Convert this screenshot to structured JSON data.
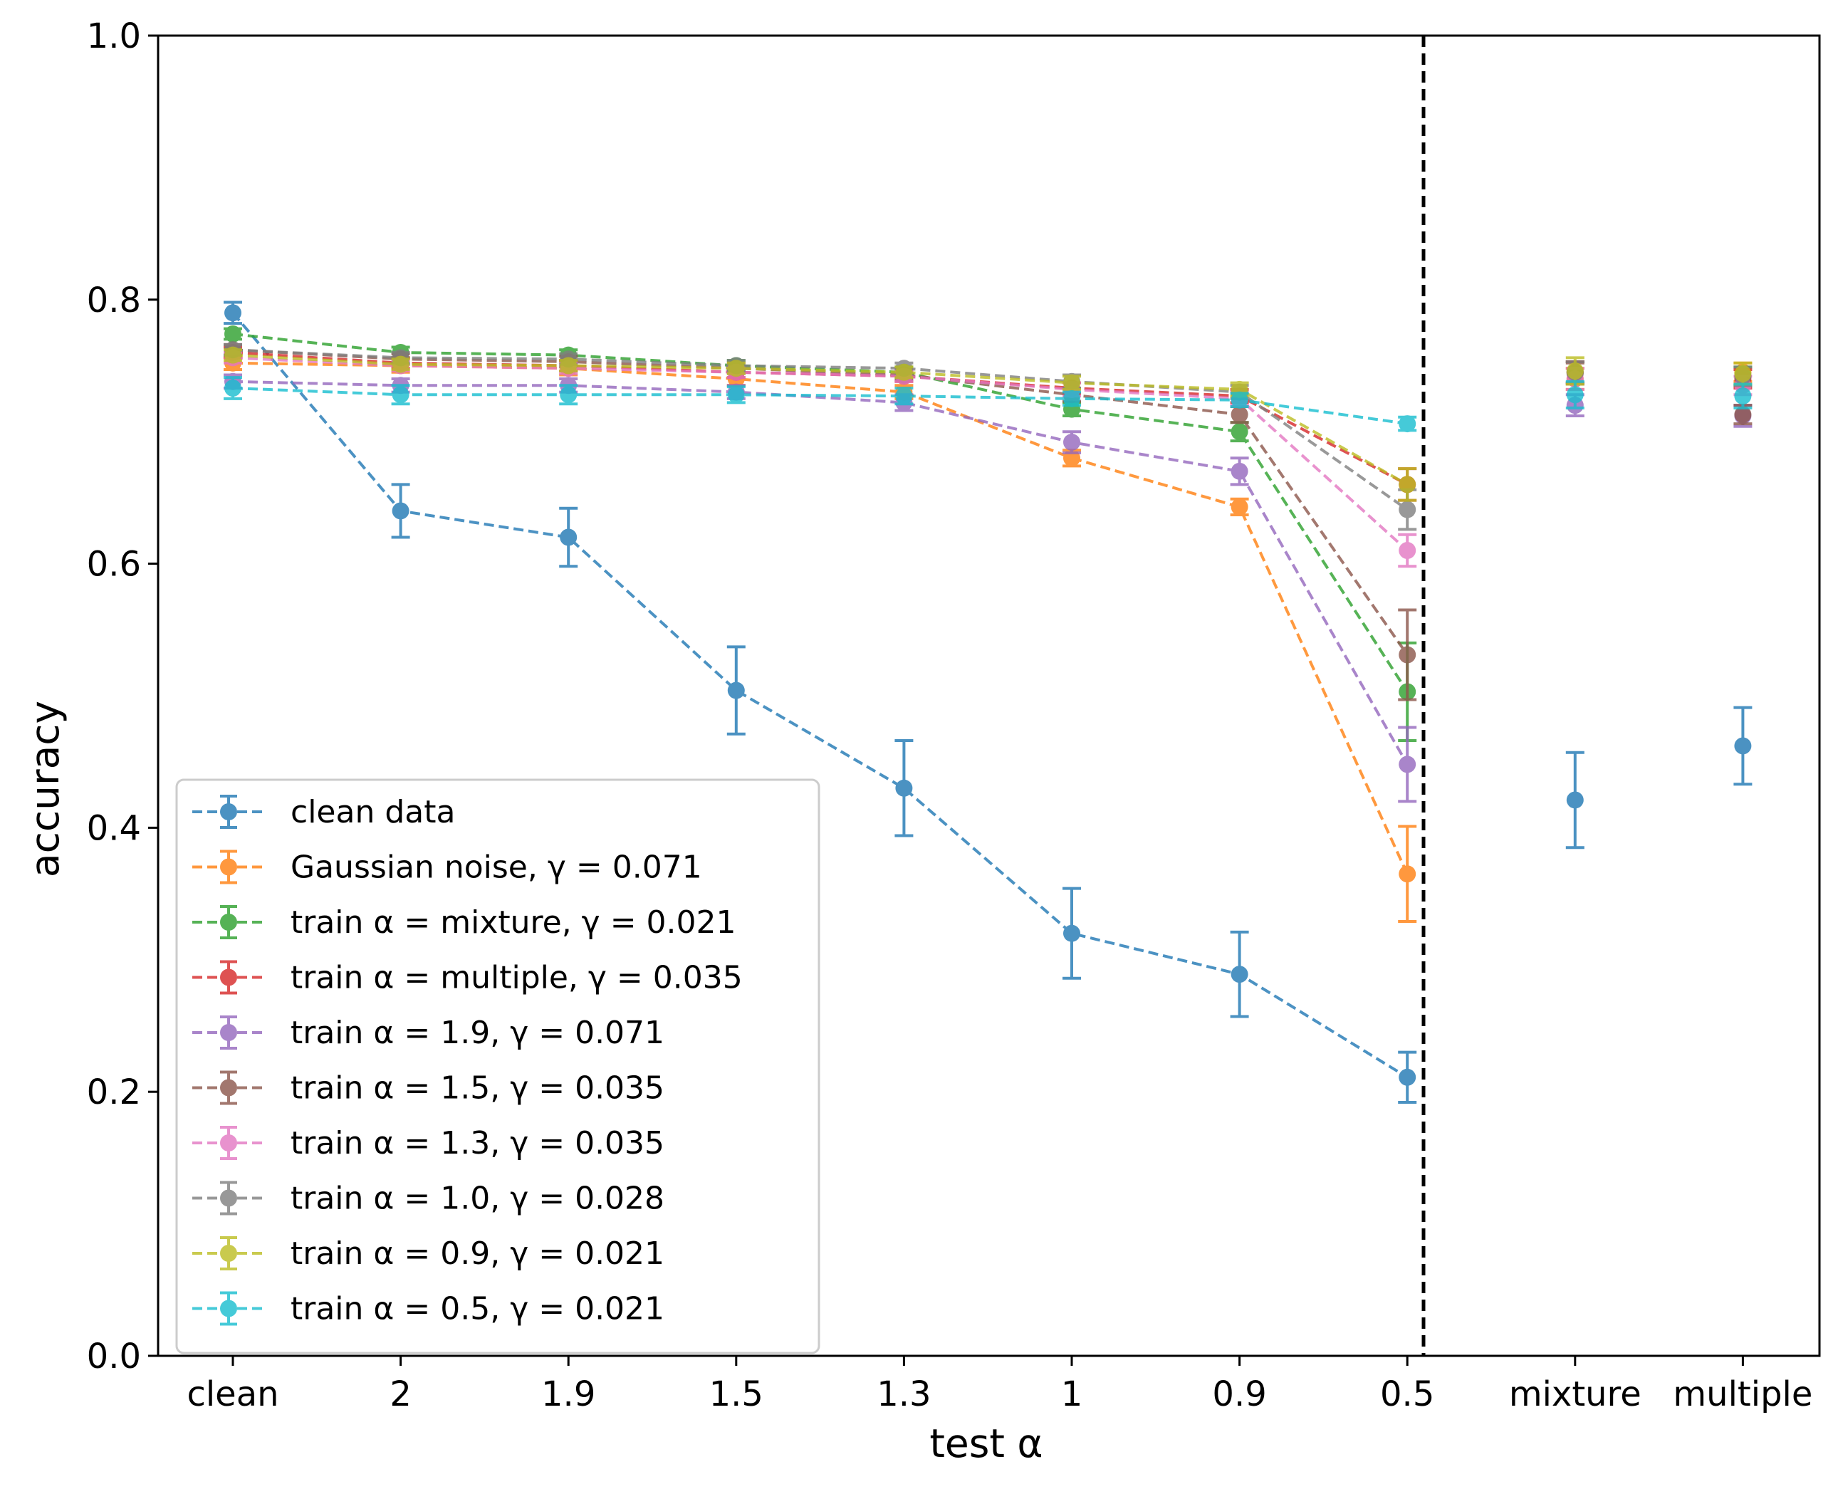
{
  "chart_data": {
    "type": "line",
    "xlabel": "test α",
    "ylabel": "accuracy",
    "ylim": [
      0,
      1
    ],
    "yticks": [
      "0.0",
      "0.2",
      "0.4",
      "0.6",
      "0.8",
      "1.0"
    ],
    "categories": [
      "clean",
      "2",
      "1.9",
      "1.5",
      "1.3",
      "1",
      "0.9",
      "0.5",
      "mixture",
      "multiple"
    ],
    "separator_after_category": "0.5",
    "legend_position": "lower-left",
    "grid": false,
    "series": [
      {
        "name": "clean data",
        "color": "#1f77b4",
        "values": [
          0.79,
          0.64,
          0.62,
          0.504,
          0.43,
          0.32,
          0.289,
          0.211,
          0.421,
          0.462
        ],
        "errors": [
          0.008,
          0.02,
          0.022,
          0.033,
          0.036,
          0.034,
          0.032,
          0.019,
          0.036,
          0.029
        ]
      },
      {
        "name": "Gaussian noise, γ = 0.071",
        "color": "#ff7f0e",
        "values": [
          0.752,
          0.75,
          0.748,
          0.74,
          0.73,
          0.68,
          0.643,
          0.365,
          0.74,
          0.745
        ],
        "errors": [
          0.005,
          0.005,
          0.005,
          0.005,
          0.005,
          0.006,
          0.006,
          0.036,
          0.008,
          0.007
        ]
      },
      {
        "name": "train α = mixture, γ = 0.021",
        "color": "#2ca02c",
        "values": [
          0.774,
          0.76,
          0.758,
          0.75,
          0.745,
          0.717,
          0.7,
          0.503,
          0.745,
          0.742
        ],
        "errors": [
          0.004,
          0.004,
          0.004,
          0.004,
          0.004,
          0.005,
          0.007,
          0.037,
          0.008,
          0.007
        ]
      },
      {
        "name": "train α = multiple, γ = 0.035",
        "color": "#d62728",
        "values": [
          0.76,
          0.752,
          0.75,
          0.745,
          0.742,
          0.733,
          0.727,
          0.66,
          0.745,
          0.74
        ],
        "errors": [
          0.004,
          0.004,
          0.004,
          0.004,
          0.004,
          0.004,
          0.005,
          0.012,
          0.008,
          0.007
        ]
      },
      {
        "name": "train α = 1.9, γ = 0.071",
        "color": "#9467bd",
        "values": [
          0.738,
          0.735,
          0.735,
          0.73,
          0.722,
          0.692,
          0.67,
          0.448,
          0.72,
          0.712
        ],
        "errors": [
          0.005,
          0.005,
          0.005,
          0.005,
          0.006,
          0.008,
          0.01,
          0.028,
          0.008,
          0.008
        ]
      },
      {
        "name": "train α = 1.5, γ = 0.035",
        "color": "#8c564b",
        "values": [
          0.762,
          0.755,
          0.753,
          0.748,
          0.743,
          0.728,
          0.713,
          0.531,
          0.744,
          0.713
        ],
        "errors": [
          0.004,
          0.004,
          0.004,
          0.004,
          0.004,
          0.005,
          0.006,
          0.034,
          0.008,
          0.007
        ]
      },
      {
        "name": "train α = 1.3, γ = 0.035",
        "color": "#e377c2",
        "values": [
          0.756,
          0.75,
          0.748,
          0.745,
          0.742,
          0.732,
          0.725,
          0.61,
          0.74,
          0.735
        ],
        "errors": [
          0.004,
          0.004,
          0.004,
          0.004,
          0.004,
          0.005,
          0.005,
          0.012,
          0.008,
          0.007
        ]
      },
      {
        "name": "train α = 1.0, γ = 0.028",
        "color": "#7f7f7f",
        "values": [
          0.762,
          0.756,
          0.755,
          0.75,
          0.748,
          0.738,
          0.73,
          0.641,
          0.745,
          0.742
        ],
        "errors": [
          0.004,
          0.004,
          0.004,
          0.004,
          0.004,
          0.005,
          0.005,
          0.015,
          0.008,
          0.007
        ]
      },
      {
        "name": "train α = 0.9, γ = 0.021",
        "color": "#bcbd22",
        "values": [
          0.758,
          0.751,
          0.75,
          0.748,
          0.745,
          0.737,
          0.732,
          0.66,
          0.746,
          0.744
        ],
        "errors": [
          0.004,
          0.004,
          0.004,
          0.004,
          0.004,
          0.005,
          0.005,
          0.012,
          0.01,
          0.008
        ]
      },
      {
        "name": "train α = 0.5, γ = 0.021",
        "color": "#17becf",
        "values": [
          0.733,
          0.728,
          0.728,
          0.728,
          0.727,
          0.725,
          0.724,
          0.706,
          0.728,
          0.727
        ],
        "errors": [
          0.008,
          0.007,
          0.007,
          0.006,
          0.006,
          0.005,
          0.005,
          0.005,
          0.01,
          0.009
        ]
      }
    ]
  }
}
